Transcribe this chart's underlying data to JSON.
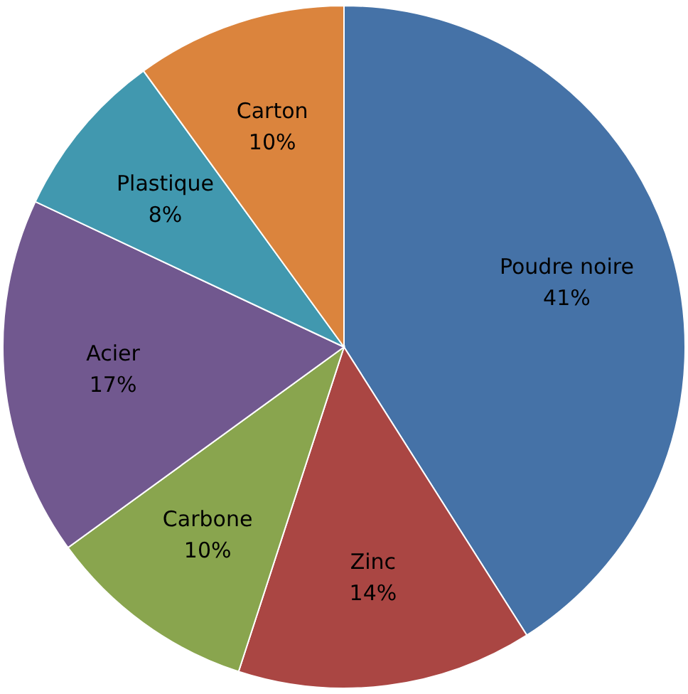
{
  "chart_data": {
    "type": "pie",
    "categories": [
      "Poudre noire",
      "Zinc",
      "Carbone",
      "Acier",
      "Plastique",
      "Carton"
    ],
    "values": [
      41,
      14,
      10,
      17,
      8,
      10
    ],
    "value_labels": [
      "41%",
      "14%",
      "10%",
      "17%",
      "8%",
      "10%"
    ],
    "colors": [
      "#4572a7",
      "#aa4643",
      "#89a54e",
      "#71588f",
      "#4198af",
      "#db843d"
    ],
    "legend": false
  }
}
